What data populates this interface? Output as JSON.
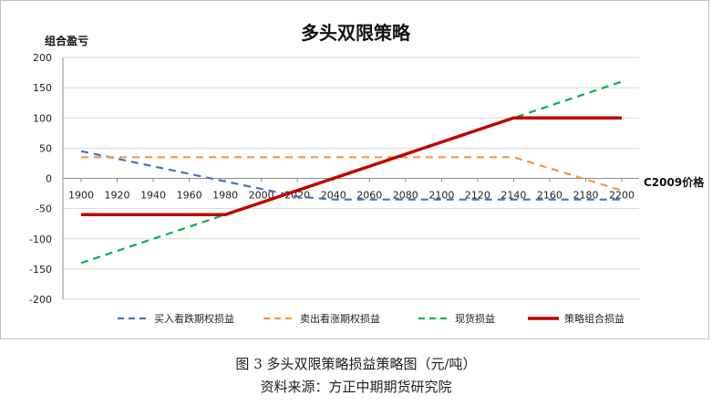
{
  "chart_data": {
    "type": "line",
    "title": "多头双限策略",
    "ylabel": "组合盈亏",
    "xlabel": "C2009价格",
    "x": [
      1900,
      1920,
      1940,
      1960,
      1980,
      2000,
      2020,
      2040,
      2060,
      2080,
      2100,
      2120,
      2140,
      2160,
      2180,
      2200
    ],
    "xlim": [
      1900,
      2200
    ],
    "ylim": [
      -200,
      200
    ],
    "yticks": [
      200,
      150,
      100,
      50,
      0,
      -50,
      -100,
      -150,
      -200
    ],
    "grid": "horizontal",
    "legend_position": "bottom",
    "series": [
      {
        "name": "买入看跌期权损益",
        "color": "#4472c4",
        "dash": "dashed",
        "values": [
          45,
          32.5,
          20,
          7.5,
          -5,
          -17.5,
          -30,
          -35,
          -35,
          -35,
          -35,
          -35,
          -35,
          -35,
          -35,
          -35
        ]
      },
      {
        "name": "卖出看涨期权损益",
        "color": "#f79646",
        "dash": "dashed",
        "values": [
          35,
          35,
          35,
          35,
          35,
          35,
          35,
          35,
          35,
          35,
          35,
          35,
          35,
          16.7,
          -1.7,
          -20
        ]
      },
      {
        "name": "现货损益",
        "color": "#00b050",
        "dash": "dashed",
        "values": [
          -140,
          -120,
          -100,
          -80,
          -60,
          -40,
          -20,
          0,
          20,
          40,
          60,
          80,
          100,
          120,
          140,
          160
        ]
      },
      {
        "name": "策略组合损益",
        "color": "#c00000",
        "dash": "solid",
        "values": [
          -60,
          -60,
          -60,
          -60,
          -60,
          -40,
          -20,
          0,
          20,
          40,
          60,
          80,
          100,
          100,
          100,
          100
        ]
      }
    ]
  },
  "caption": "图 3  多头双限策略损益策略图（元/吨）",
  "source": "资料来源：方正中期期货研究院"
}
